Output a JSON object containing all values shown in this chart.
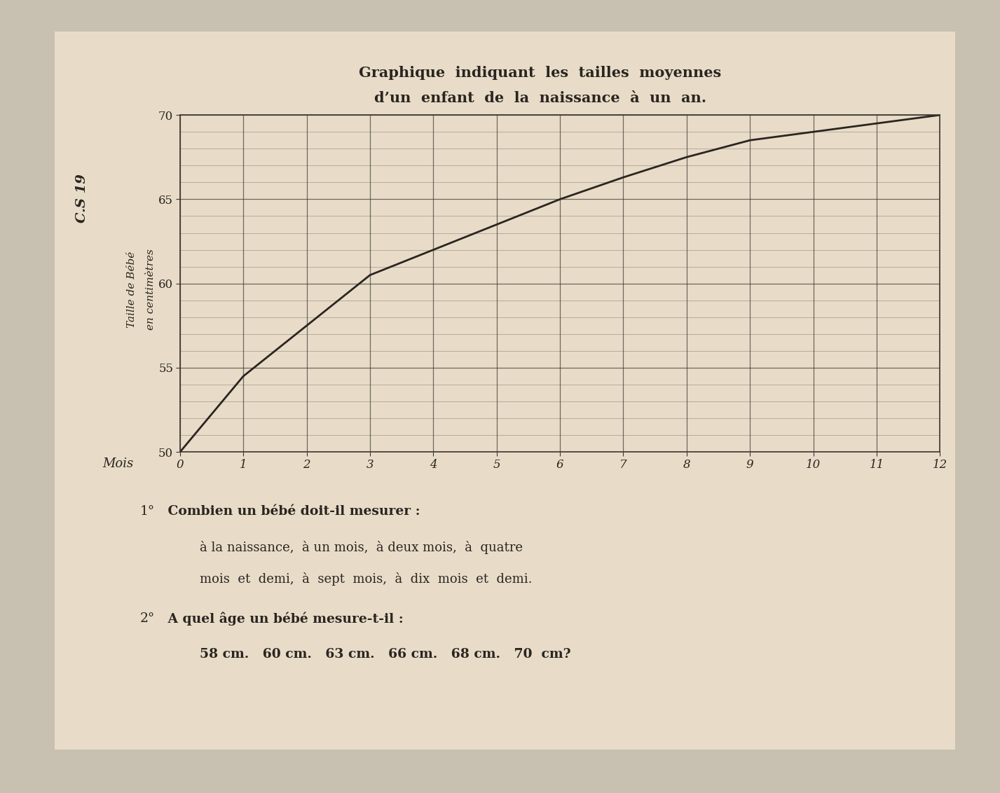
{
  "bg_card_color": "#e8dcc8",
  "bg_outer_color": "#d0c8b8",
  "title_line1": "Graphique  indiquant  les  tailles  moyennes",
  "title_line2": "d’un  enfant  de  la  naissance  à  un  an.",
  "side_label_top": "C.S 19",
  "ylabel_line1": "Taille de Bébé",
  "ylabel_line2": "en centimètres",
  "xlabel_label": "Mois",
  "x_data": [
    0,
    1,
    2,
    3,
    4,
    5,
    6,
    7,
    8,
    9,
    10,
    11,
    12
  ],
  "y_data": [
    50.0,
    54.5,
    57.5,
    60.5,
    62.0,
    63.5,
    65.0,
    66.3,
    67.5,
    68.5,
    69.0,
    69.5,
    70.0
  ],
  "x_ticks": [
    0,
    1,
    2,
    3,
    4,
    5,
    6,
    7,
    8,
    9,
    10,
    11,
    12
  ],
  "y_ticks": [
    50,
    55,
    60,
    65,
    70
  ],
  "xlim": [
    0,
    12
  ],
  "ylim": [
    50,
    70
  ],
  "line_color": "#2a2520",
  "grid_color": "#3a3530",
  "text_color": "#2a2520",
  "question1_prefix": "1°",
  "question1_text": " Combien un bébé doit-il mesurer :",
  "question1_line2": "à la naissance,  à un mois,  à deux mois,  à  quatre",
  "question1_line3": "mois  et  demi,  à  sept  mois,  à  dix  mois  et  demi.",
  "question2_prefix": "2°",
  "question2_text": " A quel âge un bébé mesure-t-il :",
  "question2_line2": "58 cm.   60 cm.   63 cm.   66 cm.   68 cm.   70  cm?"
}
